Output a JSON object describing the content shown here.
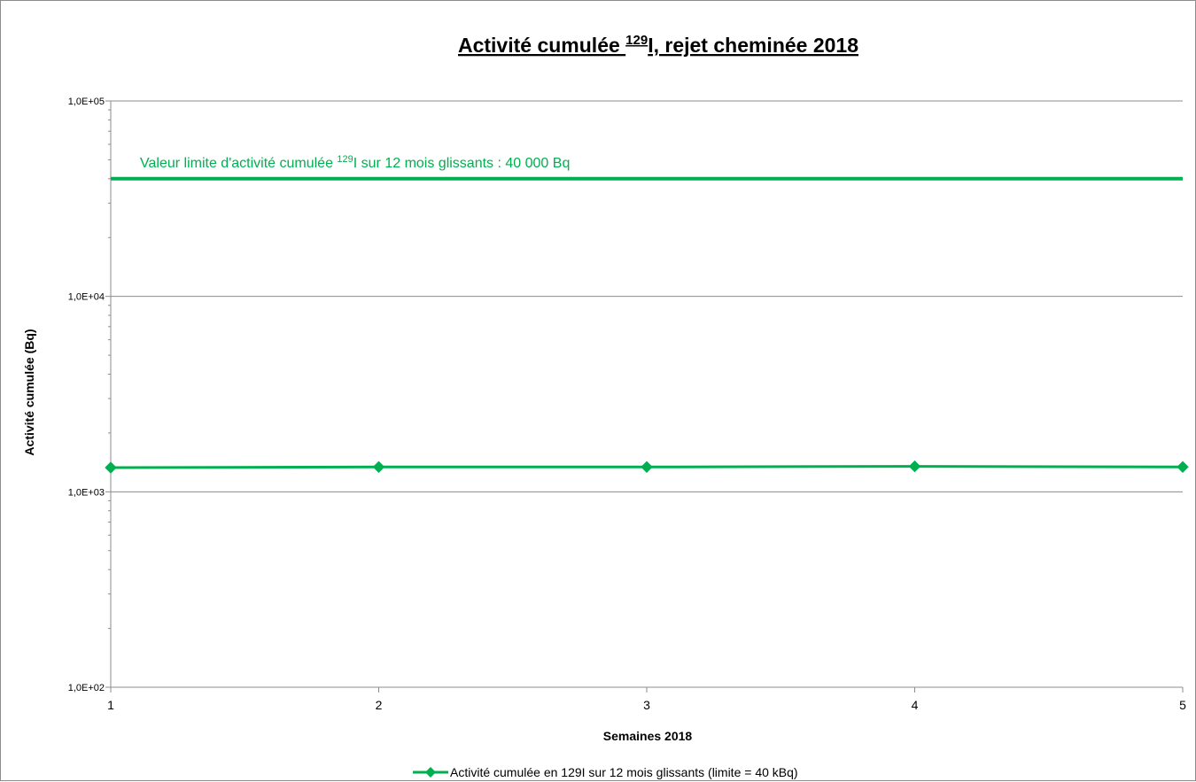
{
  "chart_data": {
    "type": "line",
    "title": {
      "prefix": "Activité cumulée ",
      "superscript": "129",
      "suffix": "I, rejet cheminée 2018"
    },
    "xlabel": "Semaines 2018",
    "ylabel": "Activité cumulée (Bq)",
    "y_scale": "log",
    "ylim": [
      100,
      100000
    ],
    "xlim": [
      1,
      5
    ],
    "y_ticks": [
      {
        "value": 100,
        "label": "1,0E+02"
      },
      {
        "value": 1000,
        "label": "1,0E+03"
      },
      {
        "value": 10000,
        "label": "1,0E+04"
      },
      {
        "value": 100000,
        "label": "1,0E+05"
      }
    ],
    "x_ticks": [
      {
        "value": 1,
        "label": "1"
      },
      {
        "value": 2,
        "label": "2"
      },
      {
        "value": 3,
        "label": "3"
      },
      {
        "value": 4,
        "label": "4"
      },
      {
        "value": 5,
        "label": "5"
      }
    ],
    "grid": "horizontal major lines",
    "legend_position": "bottom",
    "series": [
      {
        "name": "Activité cumulée en 129I sur 12 mois glissants (limite = 40 kBq)",
        "color": "#00b050",
        "marker": "diamond",
        "x": [
          1,
          2,
          3,
          4,
          5
        ],
        "values": [
          1330,
          1340,
          1340,
          1350,
          1340
        ]
      }
    ],
    "reference_lines": [
      {
        "value": 40000,
        "color": "#00b050",
        "label": {
          "prefix": "Valeur limite d'activité cumulée ",
          "superscript": "129",
          "suffix": "I sur 12 mois  glissants : 40 000 Bq"
        }
      }
    ]
  }
}
